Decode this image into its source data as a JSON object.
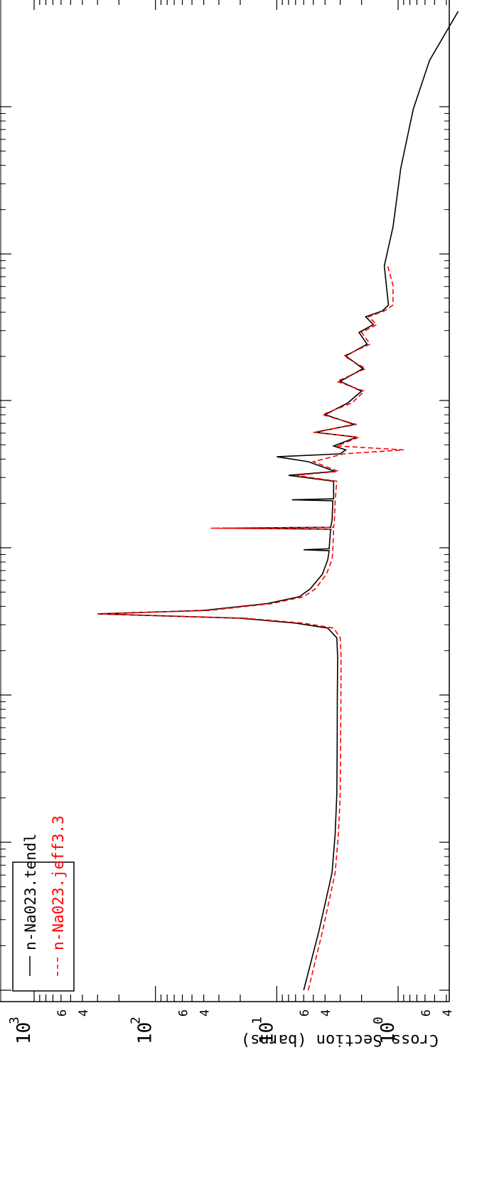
{
  "chart_data": {
    "type": "line",
    "orientation": "rotated-90-clockwise",
    "ylabel": "Cross Section (barns)",
    "y_scale": "log",
    "ylim": [
      0.35,
      1000
    ],
    "y_tick_labels": [
      {
        "base": "10",
        "exp": "3"
      },
      {
        "base": "10",
        "exp": "2"
      },
      {
        "base": "10",
        "exp": "1"
      },
      {
        "base": "10",
        "exp": "0"
      }
    ],
    "y_minor_labels": [
      "6",
      "4",
      "6",
      "4",
      "6",
      "4",
      "6",
      "4"
    ],
    "x_scale": "log",
    "legend_position": "top-left",
    "colors": {
      "tendl": "#000000",
      "jeff": "#ff0000"
    },
    "series": [
      {
        "name": "n-Na023.tendl",
        "color": "#000000",
        "style": "solid",
        "points": [
          [
            0.0,
            6.0
          ],
          [
            0.06,
            4.5
          ],
          [
            0.12,
            3.5
          ],
          [
            0.16,
            3.3
          ],
          [
            0.2,
            3.2
          ],
          [
            0.25,
            3.18
          ],
          [
            0.3,
            3.17
          ],
          [
            0.34,
            3.15
          ],
          [
            0.36,
            3.2
          ],
          [
            0.37,
            3.8
          ],
          [
            0.375,
            7.0
          ],
          [
            0.38,
            20
          ],
          [
            0.3845,
            300
          ],
          [
            0.388,
            40
          ],
          [
            0.395,
            12
          ],
          [
            0.402,
            6.5
          ],
          [
            0.41,
            5.3
          ],
          [
            0.425,
            4.2
          ],
          [
            0.44,
            3.8
          ],
          [
            0.449,
            3.7
          ],
          [
            0.45,
            6.0
          ],
          [
            0.451,
            3.7
          ],
          [
            0.471,
            3.6
          ],
          [
            0.472,
            28
          ],
          [
            0.473,
            3.6
          ],
          [
            0.48,
            3.5
          ],
          [
            0.5,
            3.45
          ],
          [
            0.501,
            7.5
          ],
          [
            0.502,
            3.4
          ],
          [
            0.52,
            3.4
          ],
          [
            0.526,
            8
          ],
          [
            0.53,
            3.3
          ],
          [
            0.54,
            5.5
          ],
          [
            0.545,
            10
          ],
          [
            0.548,
            3.0
          ],
          [
            0.552,
            2.7
          ],
          [
            0.556,
            3.4
          ],
          [
            0.565,
            2.2
          ],
          [
            0.57,
            4.8
          ],
          [
            0.578,
            2.3
          ],
          [
            0.588,
            4.0
          ],
          [
            0.6,
            2.6
          ],
          [
            0.612,
            2.0
          ],
          [
            0.622,
            3.0
          ],
          [
            0.635,
            1.95
          ],
          [
            0.648,
            2.7
          ],
          [
            0.66,
            1.8
          ],
          [
            0.672,
            2.1
          ],
          [
            0.68,
            1.6
          ],
          [
            0.688,
            1.85
          ],
          [
            0.694,
            1.35
          ],
          [
            0.7,
            1.2
          ],
          [
            0.72,
            1.25
          ],
          [
            0.74,
            1.3
          ],
          [
            0.78,
            1.1
          ],
          [
            0.84,
            0.95
          ],
          [
            0.9,
            0.75
          ],
          [
            0.95,
            0.55
          ],
          [
            1.0,
            0.32
          ]
        ]
      },
      {
        "name": "n-Na023.jeff3.3",
        "color": "#ff0000",
        "style": "dashed",
        "points": [
          [
            0.0,
            5.5
          ],
          [
            0.06,
            4.2
          ],
          [
            0.12,
            3.3
          ],
          [
            0.16,
            3.1
          ],
          [
            0.2,
            3.0
          ],
          [
            0.25,
            2.98
          ],
          [
            0.3,
            2.96
          ],
          [
            0.34,
            2.95
          ],
          [
            0.36,
            3.0
          ],
          [
            0.37,
            3.4
          ],
          [
            0.375,
            6.0
          ],
          [
            0.38,
            18
          ],
          [
            0.3845,
            300
          ],
          [
            0.388,
            36
          ],
          [
            0.395,
            11
          ],
          [
            0.402,
            6.0
          ],
          [
            0.41,
            4.8
          ],
          [
            0.425,
            3.9
          ],
          [
            0.44,
            3.5
          ],
          [
            0.449,
            3.45
          ],
          [
            0.451,
            3.45
          ],
          [
            0.471,
            3.4
          ],
          [
            0.472,
            35
          ],
          [
            0.473,
            3.4
          ],
          [
            0.48,
            3.35
          ],
          [
            0.5,
            3.3
          ],
          [
            0.52,
            3.2
          ],
          [
            0.526,
            7
          ],
          [
            0.53,
            3.1
          ],
          [
            0.54,
            5.0
          ],
          [
            0.548,
            2.8
          ],
          [
            0.552,
            0.9
          ],
          [
            0.556,
            3.2
          ],
          [
            0.565,
            2.1
          ],
          [
            0.57,
            5.0
          ],
          [
            0.578,
            2.2
          ],
          [
            0.588,
            4.2
          ],
          [
            0.6,
            2.4
          ],
          [
            0.612,
            1.9
          ],
          [
            0.622,
            3.2
          ],
          [
            0.635,
            1.85
          ],
          [
            0.648,
            2.8
          ],
          [
            0.66,
            1.7
          ],
          [
            0.672,
            2.0
          ],
          [
            0.68,
            1.5
          ],
          [
            0.688,
            1.75
          ],
          [
            0.694,
            1.3
          ],
          [
            0.7,
            1.1
          ],
          [
            0.72,
            1.1
          ],
          [
            0.74,
            1.22
          ]
        ]
      }
    ]
  }
}
